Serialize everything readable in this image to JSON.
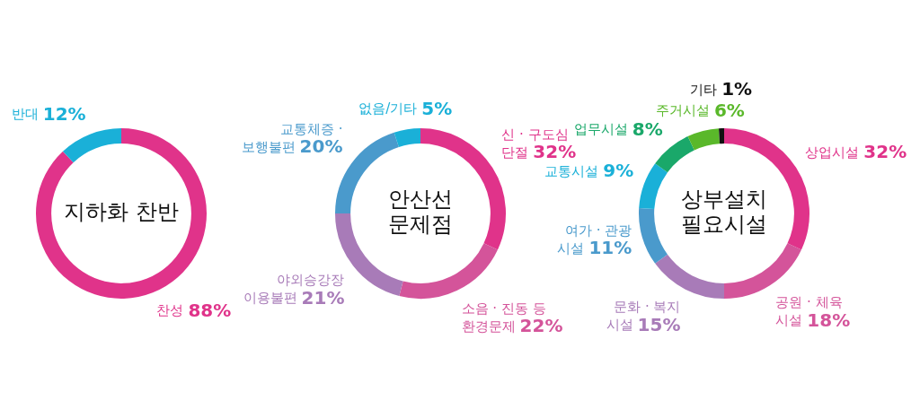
{
  "chart_data": [
    {
      "type": "donut",
      "title": "지하화 찬반",
      "categories": [
        "찬성",
        "반대"
      ],
      "values": [
        88,
        12
      ],
      "colors": [
        "#e0338a",
        "#1ab0d8"
      ],
      "value_labels": [
        "88%",
        "12%"
      ]
    },
    {
      "type": "donut",
      "title": "안산선\n문제점",
      "categories": [
        "신 · 구도심\n단절",
        "소음 · 진동 등\n환경문제",
        "야외승강장\n이용불편",
        "교통체증 ·\n보행불편",
        "없음/기타"
      ],
      "values": [
        32,
        22,
        21,
        20,
        5
      ],
      "colors": [
        "#e0338a",
        "#d4549a",
        "#a87bb8",
        "#4a9acc",
        "#1ab0d8"
      ],
      "value_labels": [
        "32%",
        "22%",
        "21%",
        "20%",
        "5%"
      ]
    },
    {
      "type": "donut",
      "title": "상부설치\n필요시설",
      "categories": [
        "상업시설",
        "공원 · 체육\n시설",
        "문화 · 복지\n시설",
        "여가 · 관광\n시설",
        "교통시설",
        "업무시설",
        "주거시설",
        "기타"
      ],
      "values": [
        32,
        18,
        15,
        11,
        9,
        8,
        6,
        1
      ],
      "colors": [
        "#e0338a",
        "#d4549a",
        "#a87bb8",
        "#4a9acc",
        "#1ab0d8",
        "#1aa86a",
        "#5ab82a",
        "#111111"
      ],
      "value_labels": [
        "32%",
        "18%",
        "15%",
        "11%",
        "9%",
        "8%",
        "6%",
        "1%"
      ]
    }
  ]
}
